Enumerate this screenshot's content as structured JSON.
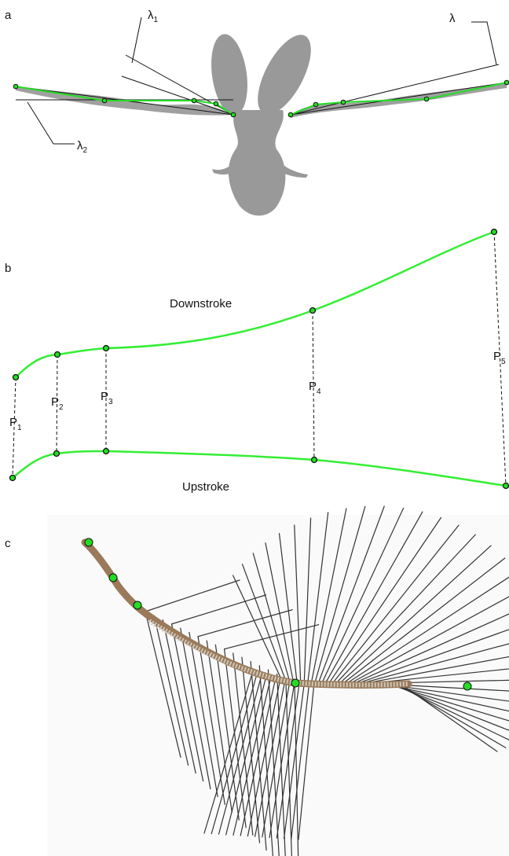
{
  "panel_a": {
    "label": "a",
    "annotations": [
      {
        "symbol": "λ",
        "subscript": "1"
      },
      {
        "symbol": "λ"
      },
      {
        "symbol": "λ",
        "subscript": "2"
      }
    ]
  },
  "panel_b": {
    "label": "b",
    "downstroke": "Downstroke",
    "upstroke": "Upstroke",
    "points": [
      {
        "symbol": "P",
        "subscript": "1"
      },
      {
        "symbol": "P",
        "subscript": "2"
      },
      {
        "symbol": "P",
        "subscript": "3"
      },
      {
        "symbol": "P",
        "subscript": "4"
      },
      {
        "symbol": "P",
        "subscript": "5"
      }
    ]
  },
  "panel_c": {
    "label": "c"
  }
}
